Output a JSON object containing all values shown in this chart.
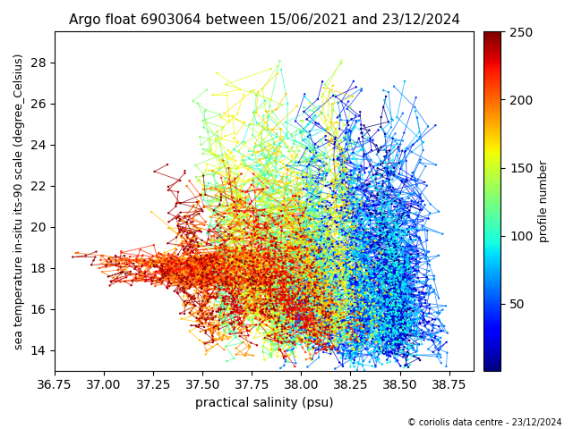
{
  "title": "Argo float 6903064 between 15/06/2021 and 23/12/2024",
  "xlabel": "practical salinity (psu)",
  "ylabel": "sea temperature in-situ its-90 scale (degree_Celsius)",
  "colorbar_label": "profile number",
  "copyright": "© coriolis data centre - 23/12/2024",
  "xlim": [
    36.75,
    38.875
  ],
  "ylim": [
    13.0,
    29.5
  ],
  "xticks": [
    36.75,
    37.0,
    37.25,
    37.5,
    37.75,
    38.0,
    38.25,
    38.5,
    38.75
  ],
  "yticks": [
    14,
    16,
    18,
    20,
    22,
    24,
    26,
    28
  ],
  "colormap": "jet",
  "vmin": 1,
  "vmax": 250,
  "cbar_ticks": [
    50,
    100,
    150,
    200,
    250
  ],
  "n_profiles": 250,
  "seed": 42,
  "figsize": [
    6.4,
    4.8
  ],
  "dpi": 100
}
